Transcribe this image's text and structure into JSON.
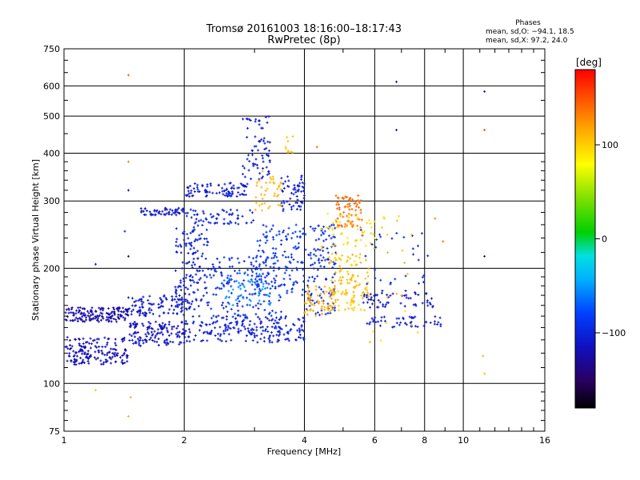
{
  "chart_data": {
    "type": "scatter",
    "title": "Tromsø 20161003 18:16:00–18:17:43",
    "subtitle": "RwPretec (8p)",
    "xlabel": "Frequency [MHz]",
    "ylabel": "Stationary phase Virtual Height [km]",
    "x_scale": "log",
    "y_scale": "log",
    "xlim": [
      1,
      16
    ],
    "ylim": [
      75,
      750
    ],
    "x_ticks": [
      1,
      2,
      4,
      6,
      8,
      10,
      16
    ],
    "x_tick_labels": [
      "1",
      "2",
      "4",
      "6",
      "8",
      "10",
      "16"
    ],
    "y_ticks": [
      75,
      100,
      200,
      300,
      400,
      500,
      600,
      750
    ],
    "y_tick_labels": [
      "75",
      "100",
      "200",
      "300",
      "400",
      "500",
      "600",
      "750"
    ],
    "grid": true,
    "stats": {
      "heading": "Phases",
      "line_o": "mean, sd,O: −94.1, 18.5",
      "line_x": "mean, sd,X:  97.2, 24.0"
    },
    "colorbar": {
      "label": "[deg]",
      "range": [
        -180,
        180
      ],
      "ticks": [
        100,
        0,
        -100
      ],
      "tick_labels": [
        "100",
        "0",
        "−100"
      ],
      "colormap": "rainbow"
    },
    "point_groups": [
      {
        "x": [
          1.0,
          1.45
        ],
        "y": [
          145,
          158
        ],
        "phase": -125,
        "n": 160,
        "spread": 5
      },
      {
        "x": [
          1.0,
          1.45
        ],
        "y": [
          112,
          132
        ],
        "phase": -120,
        "n": 170,
        "spread": 5
      },
      {
        "x": [
          1.45,
          2.0
        ],
        "y": [
          125,
          145
        ],
        "phase": -115,
        "n": 130,
        "spread": 4
      },
      {
        "x": [
          1.45,
          2.0
        ],
        "y": [
          150,
          170
        ],
        "phase": -110,
        "n": 90,
        "spread": 6
      },
      {
        "x": [
          1.55,
          2.0
        ],
        "y": [
          275,
          288
        ],
        "phase": -110,
        "n": 60,
        "spread": 3
      },
      {
        "x": [
          2.0,
          2.9
        ],
        "y": [
          308,
          335
        ],
        "phase": -105,
        "n": 90,
        "spread": 4
      },
      {
        "x": [
          2.8,
          3.3
        ],
        "y": [
          340,
          500
        ],
        "phase": -105,
        "n": 70,
        "spread": 8
      },
      {
        "x": [
          2.0,
          3.0
        ],
        "y": [
          260,
          285
        ],
        "phase": -100,
        "n": 60,
        "spread": 5
      },
      {
        "x": [
          1.9,
          2.3
        ],
        "y": [
          155,
          260
        ],
        "phase": -105,
        "n": 150,
        "spread": 6
      },
      {
        "x": [
          2.0,
          4.0
        ],
        "y": [
          128,
          150
        ],
        "phase": -105,
        "n": 220,
        "spread": 5
      },
      {
        "x": [
          2.3,
          3.5
        ],
        "y": [
          150,
          215
        ],
        "phase": -95,
        "n": 140,
        "spread": 10
      },
      {
        "x": [
          2.5,
          3.3
        ],
        "y": [
          160,
          195
        ],
        "phase": -55,
        "n": 50,
        "spread": 10
      },
      {
        "x": [
          3.0,
          4.0
        ],
        "y": [
          170,
          260
        ],
        "phase": -90,
        "n": 140,
        "spread": 8
      },
      {
        "x": [
          3.5,
          4.0
        ],
        "y": [
          280,
          350
        ],
        "phase": -105,
        "n": 60,
        "spread": 4
      },
      {
        "x": [
          3.0,
          3.5
        ],
        "y": [
          280,
          360
        ],
        "phase": 110,
        "n": 40,
        "spread": 5
      },
      {
        "x": [
          3.5,
          3.8
        ],
        "y": [
          400,
          460
        ],
        "phase": 105,
        "n": 10,
        "spread": 3
      },
      {
        "x": [
          4.0,
          4.8
        ],
        "y": [
          150,
          260
        ],
        "phase": -95,
        "n": 120,
        "spread": 8
      },
      {
        "x": [
          4.0,
          4.8
        ],
        "y": [
          150,
          180
        ],
        "phase": 115,
        "n": 60,
        "spread": 8
      },
      {
        "x": [
          4.6,
          5.8
        ],
        "y": [
          155,
          220
        ],
        "phase": 105,
        "n": 120,
        "spread": 10
      },
      {
        "x": [
          4.8,
          5.6
        ],
        "y": [
          255,
          310
        ],
        "phase": 140,
        "n": 70,
        "spread": 5
      },
      {
        "x": [
          4.4,
          6.0
        ],
        "y": [
          220,
          280
        ],
        "phase": 95,
        "n": 50,
        "spread": 10
      },
      {
        "x": [
          5.6,
          8.5
        ],
        "y": [
          158,
          175
        ],
        "phase": -110,
        "n": 60,
        "spread": 4
      },
      {
        "x": [
          5.6,
          8.8
        ],
        "y": [
          140,
          150
        ],
        "phase": -105,
        "n": 50,
        "spread": 4
      },
      {
        "x": [
          5.5,
          8.3
        ],
        "y": [
          180,
          260
        ],
        "phase": -100,
        "n": 30,
        "spread": 10
      },
      {
        "x": [
          5.0,
          8.5
        ],
        "y": [
          120,
          280
        ],
        "phase": 100,
        "n": 25,
        "spread": 15
      }
    ],
    "isolated_points": [
      {
        "x": 1.45,
        "y": 640,
        "phase": 140
      },
      {
        "x": 1.45,
        "y": 380,
        "phase": 130
      },
      {
        "x": 1.45,
        "y": 320,
        "phase": -110
      },
      {
        "x": 1.42,
        "y": 250,
        "phase": -100
      },
      {
        "x": 1.45,
        "y": 215,
        "phase": -120
      },
      {
        "x": 1.2,
        "y": 205,
        "phase": -110
      },
      {
        "x": 1.45,
        "y": 82,
        "phase": 110
      },
      {
        "x": 1.47,
        "y": 92,
        "phase": 110
      },
      {
        "x": 1.2,
        "y": 96,
        "phase": 105
      },
      {
        "x": 6.8,
        "y": 615,
        "phase": -120
      },
      {
        "x": 6.8,
        "y": 460,
        "phase": -110
      },
      {
        "x": 11.3,
        "y": 580,
        "phase": -120
      },
      {
        "x": 11.3,
        "y": 460,
        "phase": 150
      },
      {
        "x": 11.3,
        "y": 215,
        "phase": -120
      },
      {
        "x": 11.2,
        "y": 118,
        "phase": 110
      },
      {
        "x": 11.3,
        "y": 106,
        "phase": 110
      },
      {
        "x": 8.9,
        "y": 235,
        "phase": 140
      },
      {
        "x": 8.5,
        "y": 270,
        "phase": 130
      },
      {
        "x": 4.3,
        "y": 415,
        "phase": 140
      }
    ]
  }
}
